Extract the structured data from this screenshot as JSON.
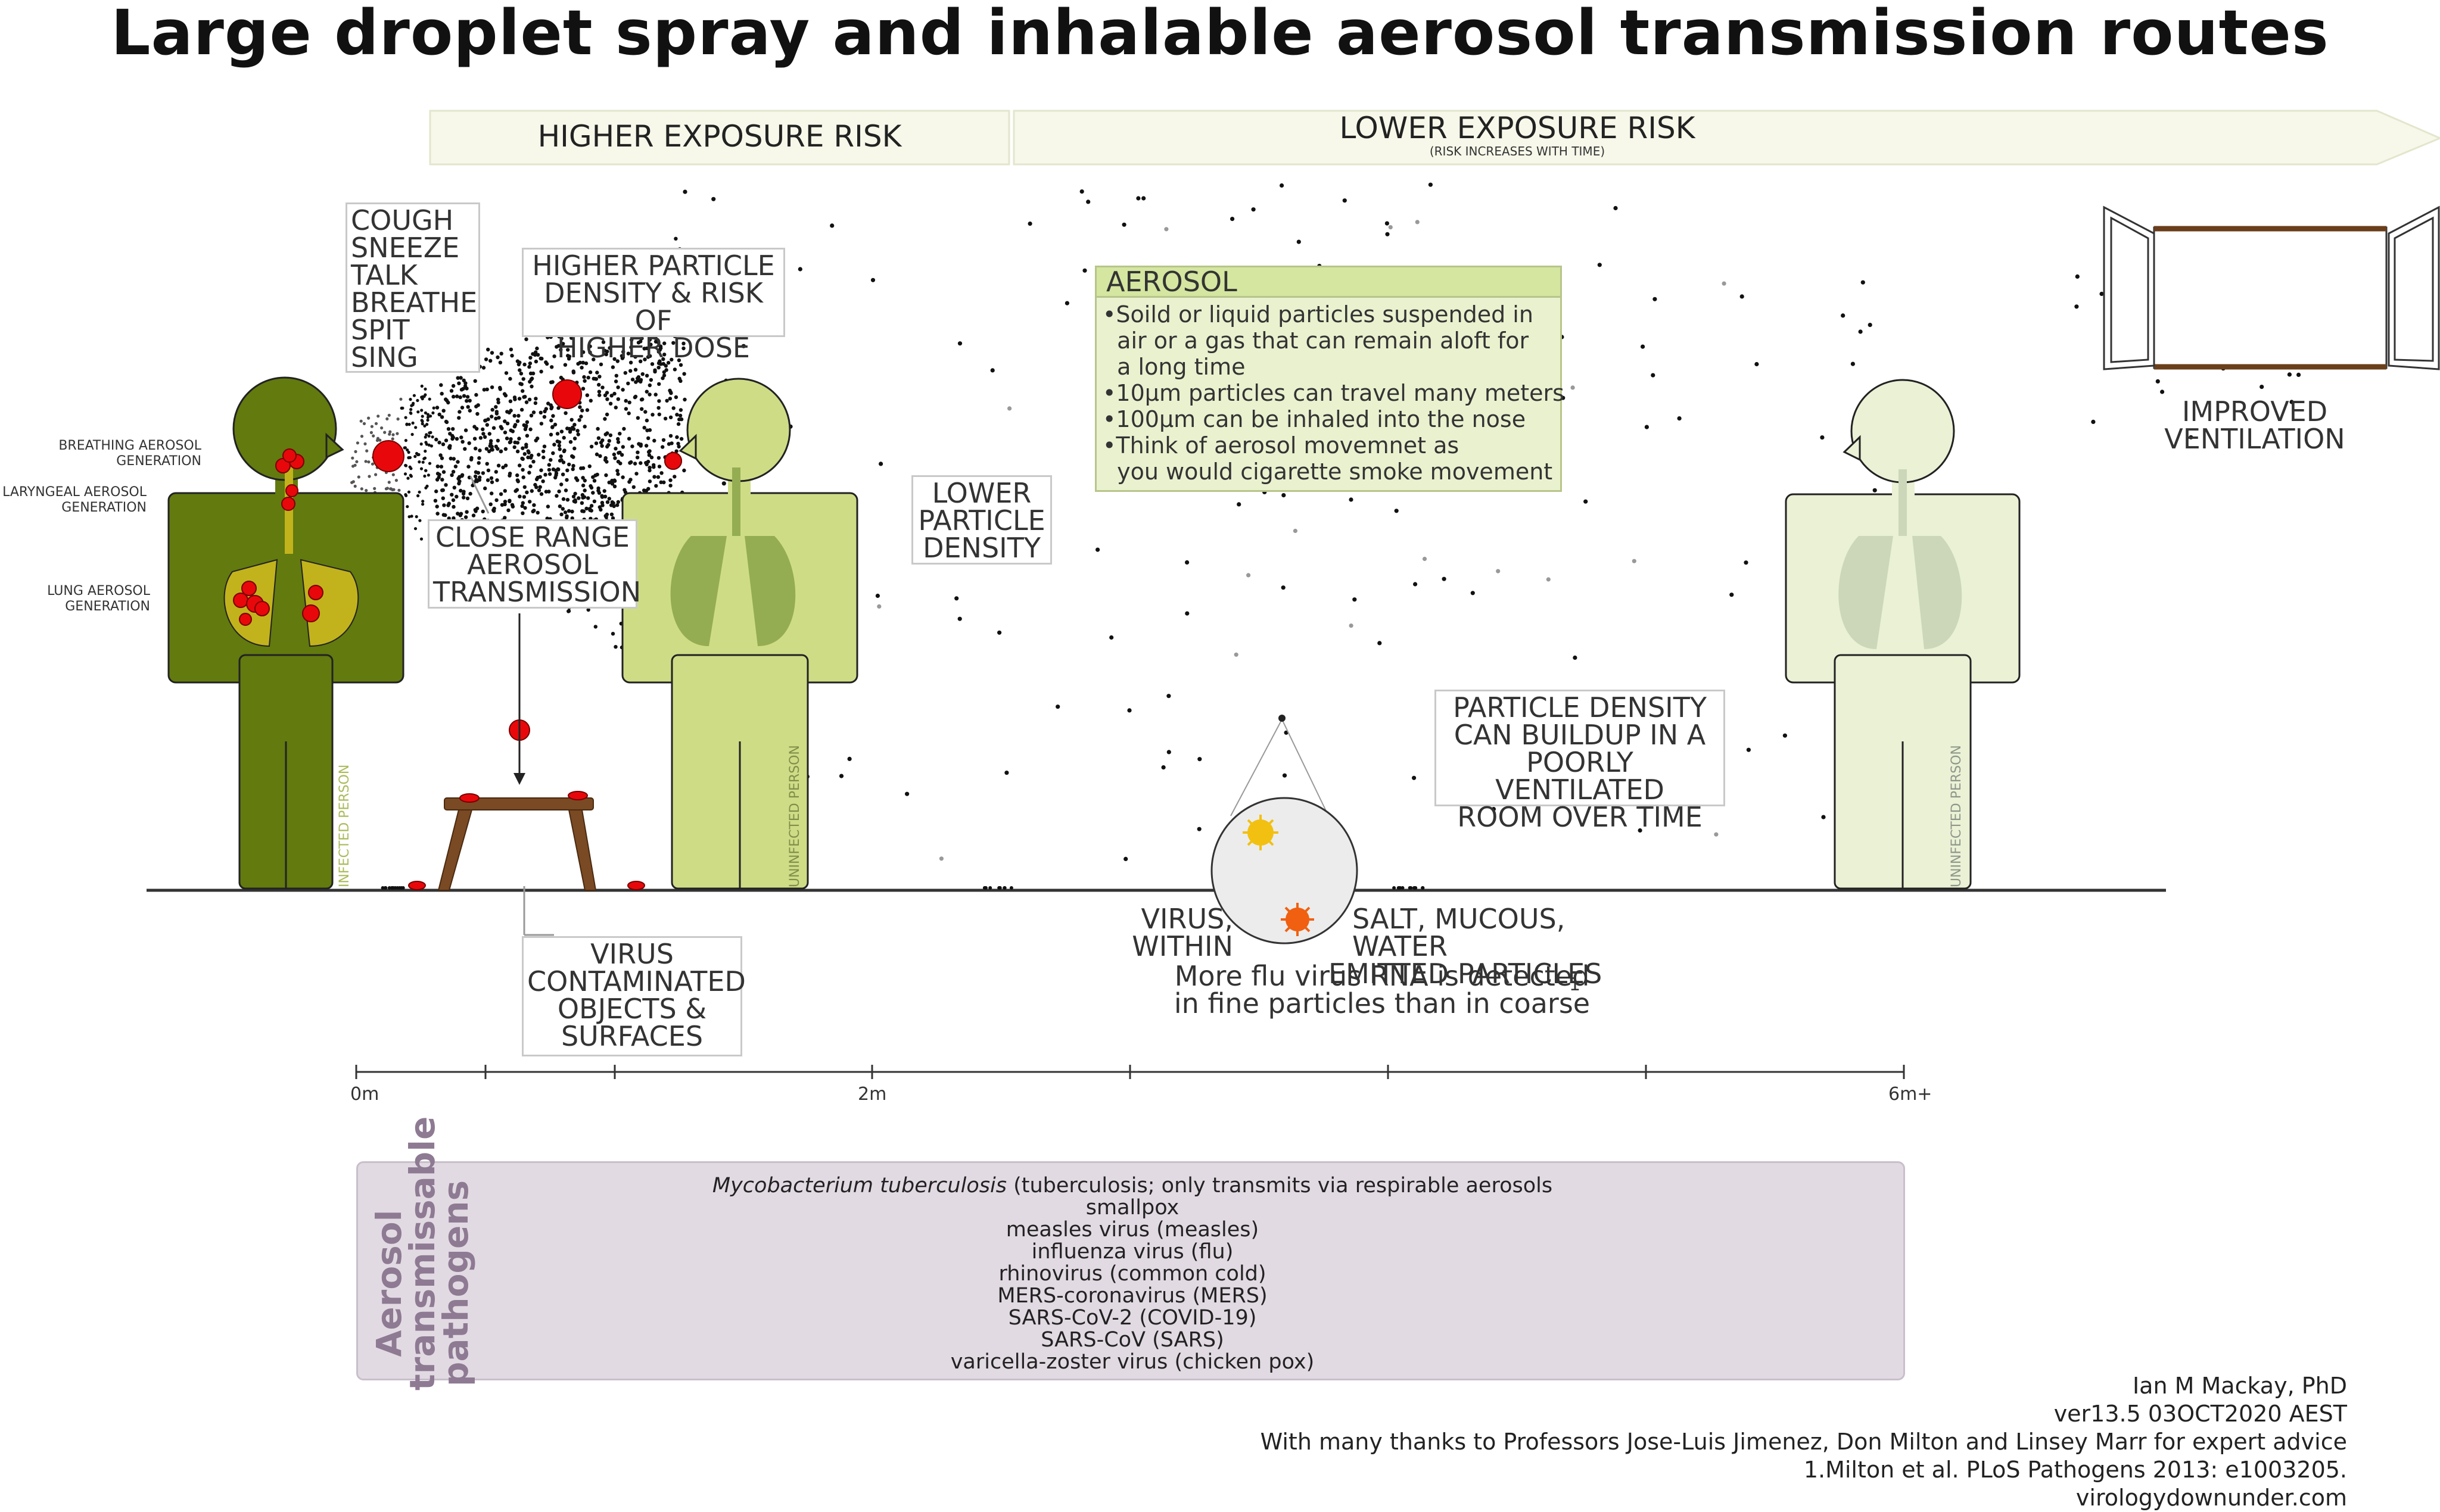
{
  "title": "Large droplet spray and inhalable aerosol transmission routes",
  "risk_banner": {
    "higher": "HIGHER EXPOSURE RISK",
    "lower": "LOWER EXPOSURE RISK",
    "lower_sub": "(RISK INCREASES WITH TIME)"
  },
  "generation_labels": {
    "breathing": [
      "BREATHING AEROSOL",
      "GENERATION"
    ],
    "laryngeal": [
      "LARYNGEAL AEROSOL",
      "GENERATION"
    ],
    "lung": [
      "LUNG AEROSOL",
      "GENERATION"
    ]
  },
  "activities": [
    "COUGH",
    "SNEEZE",
    "TALK",
    "BREATHE",
    "SPIT",
    "SING"
  ],
  "callouts": {
    "higher_density": [
      "HIGHER PARTICLE",
      "DENSITY & RISK OF",
      "HIGHER DOSE"
    ],
    "close_range": [
      "CLOSE RANGE",
      "AEROSOL",
      "TRANSMISSION"
    ],
    "lower_density": [
      "LOWER",
      "PARTICLE",
      "DENSITY"
    ],
    "buildup": [
      "PARTICLE DENSITY",
      "CAN BUILDUP IN A",
      "POORLY VENTILATED",
      "ROOM OVER TIME"
    ],
    "surfaces": [
      "VIRUS",
      "CONTAMINATED",
      "OBJECTS &",
      "SURFACES"
    ],
    "ventilation": [
      "IMPROVED",
      "VENTILATION"
    ]
  },
  "aerosol_box": {
    "heading": "AEROSOL",
    "lines": [
      "•Soild or liquid particles suspended in",
      "  air or a gas that can remain aloft for",
      "  a long time",
      "•10µm particles can travel many meters",
      "•100µm can be inhaled into the nose",
      "•Think of aerosol movemnet as",
      "  you would cigarette smoke movement"
    ]
  },
  "particle_zoom": {
    "virus": [
      "VIRUS,",
      "WITHIN"
    ],
    "salt": [
      "SALT, MUCOUS, WATER",
      "EMITTED PARTICLES"
    ],
    "rna": [
      "More flu virus RNA is detected",
      "in fine particles than in coarse"
    ],
    "footnote_mark": "1"
  },
  "person_tags": {
    "infected": "INFECTED PERSON",
    "uninfected": "UNINFECTED PERSON"
  },
  "distance_axis": {
    "unit": "m",
    "labeled_ticks": [
      "0m",
      "2m",
      "6m+"
    ]
  },
  "pathogens": {
    "heading": [
      "Aerosol",
      "transmissable",
      "pathogens"
    ],
    "first_italic": "Mycobacterium tuberculosis",
    "first_rest": " (tuberculosis; only transmits via respirable aerosols",
    "list": [
      "smallpox",
      "measles virus (measles)",
      "influenza virus (flu)",
      "rhinovirus (common cold)",
      "MERS-coronavirus (MERS)",
      "SARS-CoV-2 (COVID-19)",
      "SARS-CoV (SARS)",
      "varicella-zoster virus (chicken pox)"
    ]
  },
  "credits": [
    "Ian M Mackay, PhD",
    "ver13.5 03OCT2020 AEST",
    "With many thanks to Professors Jose-Luis Jimenez, Don Milton and Linsey Marr for expert advice",
    "1.Milton et al. PLoS Pathogens 2013: e1003205.",
    "virologydownunder.com"
  ],
  "colors": {
    "infected_body": "#627a0e",
    "infected_lungs": "#c2b31c",
    "uninfected_body": "#cfdc86",
    "uninfected_lungs": "#94ad52",
    "far_person_body": "#eaf1d5",
    "far_person_lungs": "#ccd7b9",
    "droplet": "#e8080b",
    "banner": "#f7f8ea",
    "table": "#7a4a24",
    "virus_yellow": "#f2c010",
    "virus_orange": "#f06010",
    "pathogen_box": "#e2dae3",
    "pathogen_heading": "#8e7a92"
  }
}
